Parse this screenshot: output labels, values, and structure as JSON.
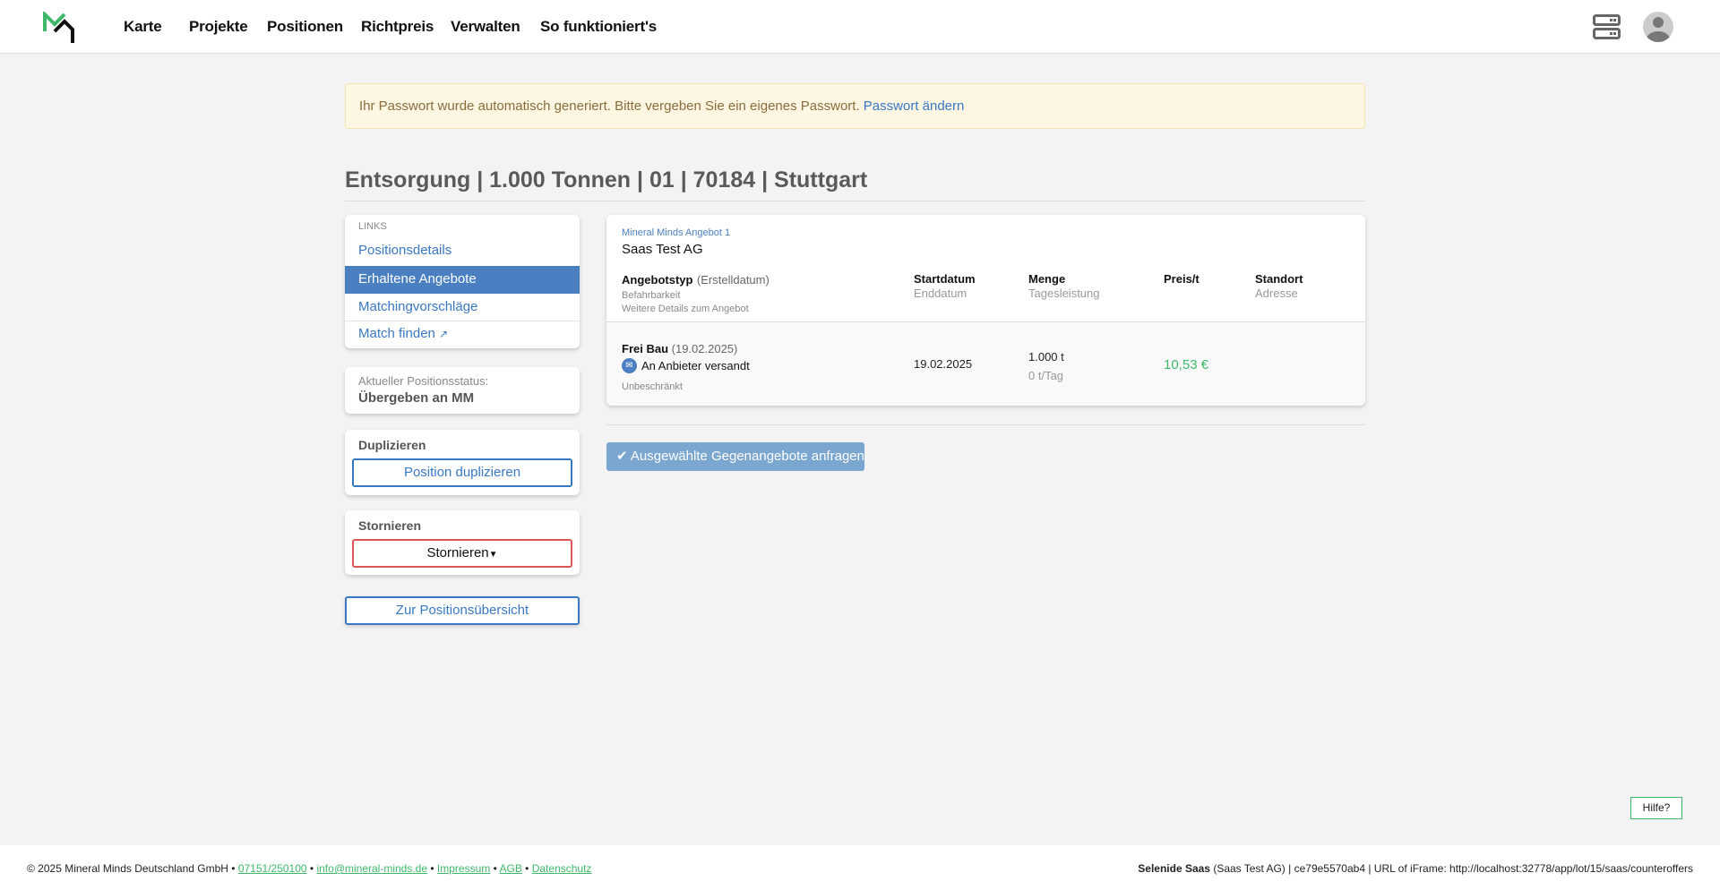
{
  "nav": {
    "items": [
      "Karte",
      "Projekte",
      "Positionen",
      "Richtpreis",
      "Verwalten",
      "So funktioniert's"
    ]
  },
  "alert": {
    "text": "Ihr Passwort wurde automatisch generiert. Bitte vergeben Sie ein eigenes Passwort.",
    "link": "Passwort ändern"
  },
  "page_title": "Entsorgung | 1.000 Tonnen | 01 | 70184 | Stuttgart",
  "sidebar": {
    "links_label": "LINKS",
    "links": [
      "Positionsdetails",
      "Erhaltene Angebote",
      "Matchingvorschläge",
      "Match finden"
    ],
    "active_index": 1,
    "status_label": "Aktueller Positionsstatus:",
    "status_value": "Übergeben an MM",
    "duplicate_title": "Duplizieren",
    "duplicate_button": "Position duplizieren",
    "cancel_title": "Stornieren",
    "cancel_button": "Stornieren",
    "overview_button": "Zur Positionsübersicht"
  },
  "offer": {
    "source": "Mineral Minds Angebot 1",
    "company": "Saas Test AG",
    "headers": {
      "col1": "Angebotstyp",
      "col1_sub": "(Erstelldatum)",
      "col1_line2": "Befahrbarkeit",
      "col1_line3": "Weitere Details zum Angebot",
      "start": "Startdatum",
      "end": "Enddatum",
      "amount": "Menge",
      "daily": "Tagesleistung",
      "price": "Preis/t",
      "location": "Standort",
      "address": "Adresse"
    },
    "row": {
      "type": "Frei Bau",
      "created": "(19.02.2025)",
      "status": "An Anbieter versandt",
      "access": "Unbeschränkt",
      "start": "19.02.2025",
      "amount": "1.000 t",
      "daily": "0 t/Tag",
      "price": "10,53 €"
    }
  },
  "request_button": "Ausgewählte Gegenangebote anfragen",
  "help": "Hilfe?",
  "footer": {
    "copyright": "© 2025 Mineral Minds Deutschland GmbH •",
    "phone": "07151/250100",
    "email": "info@mineral-minds.de",
    "impressum": "Impressum",
    "agb": "AGB",
    "datenschutz": "Datenschutz",
    "sep": "•",
    "user": "Selenide Saas",
    "info": "(Saas Test AG) | ce79e5570ab4 | URL of iFrame: http://localhost:32778/app/lot/15/saas/counteroffers"
  },
  "colors": {
    "accent": "#4a7fc1",
    "brand_green": "#3fb86a",
    "danger": "#e05555",
    "price": "#3fb86a"
  }
}
